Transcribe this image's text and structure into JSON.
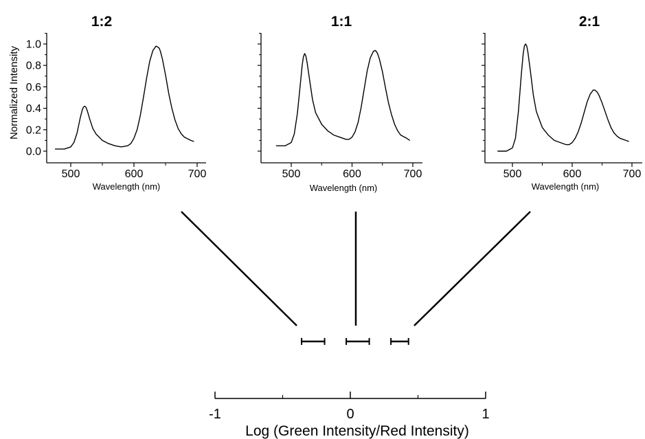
{
  "chart_data": [
    {
      "type": "line",
      "title": "1:2",
      "xlabel": "Wavelength (nm)",
      "ylabel": "Normalized Intensity",
      "xlim": [
        460,
        710
      ],
      "ylim": [
        -0.08,
        1.1
      ],
      "xticks": [
        500,
        600,
        700
      ],
      "yticks": [
        0.0,
        0.2,
        0.4,
        0.6,
        0.8,
        1.0
      ],
      "ytick_labels": [
        "0.0",
        "0.2",
        "0.4",
        "0.6",
        "0.8",
        "1.0"
      ],
      "series": [
        {
          "x": [
            475,
            490,
            500,
            505,
            510,
            515,
            518,
            520,
            522,
            524,
            526,
            530,
            535,
            540,
            550,
            560,
            570,
            580,
            590,
            595,
            600,
            605,
            610,
            615,
            620,
            625,
            630,
            635,
            638,
            640,
            642,
            645,
            650,
            655,
            660,
            665,
            670,
            675,
            680,
            690,
            695
          ],
          "y": [
            0.02,
            0.02,
            0.04,
            0.08,
            0.17,
            0.31,
            0.38,
            0.41,
            0.42,
            0.41,
            0.38,
            0.3,
            0.21,
            0.16,
            0.1,
            0.07,
            0.05,
            0.04,
            0.05,
            0.07,
            0.12,
            0.2,
            0.33,
            0.5,
            0.68,
            0.84,
            0.94,
            0.98,
            0.97,
            0.96,
            0.93,
            0.86,
            0.71,
            0.54,
            0.4,
            0.29,
            0.21,
            0.16,
            0.13,
            0.1,
            0.09
          ]
        }
      ]
    },
    {
      "type": "line",
      "title": "1:1",
      "xlabel": "Wavelength (nm)",
      "ylabel": "",
      "xlim": [
        460,
        710
      ],
      "ylim": [
        -0.08,
        1.1
      ],
      "xticks": [
        500,
        600,
        700
      ],
      "yticks": [
        0.0,
        0.2,
        0.4,
        0.6,
        0.8,
        1.0
      ],
      "ytick_labels": [],
      "series": [
        {
          "x": [
            475,
            490,
            500,
            505,
            510,
            515,
            518,
            520,
            522,
            524,
            526,
            530,
            535,
            540,
            550,
            560,
            570,
            580,
            590,
            595,
            600,
            605,
            610,
            615,
            620,
            625,
            630,
            635,
            638,
            640,
            642,
            645,
            650,
            655,
            660,
            665,
            670,
            675,
            680,
            690,
            695
          ],
          "y": [
            0.05,
            0.05,
            0.08,
            0.16,
            0.35,
            0.63,
            0.8,
            0.88,
            0.91,
            0.89,
            0.83,
            0.67,
            0.48,
            0.36,
            0.25,
            0.19,
            0.15,
            0.13,
            0.11,
            0.11,
            0.13,
            0.18,
            0.27,
            0.41,
            0.58,
            0.75,
            0.87,
            0.93,
            0.94,
            0.93,
            0.91,
            0.86,
            0.74,
            0.59,
            0.45,
            0.34,
            0.25,
            0.19,
            0.15,
            0.12,
            0.1
          ]
        }
      ]
    },
    {
      "type": "line",
      "title": "2:1",
      "xlabel": "Wavelength (nm)",
      "ylabel": "",
      "xlim": [
        460,
        710
      ],
      "ylim": [
        -0.08,
        1.1
      ],
      "xticks": [
        500,
        600,
        700
      ],
      "yticks": [
        0.0,
        0.2,
        0.4,
        0.6,
        0.8,
        1.0
      ],
      "ytick_labels": [],
      "series": [
        {
          "x": [
            475,
            490,
            500,
            505,
            510,
            515,
            518,
            520,
            522,
            524,
            526,
            530,
            535,
            540,
            550,
            560,
            570,
            580,
            590,
            595,
            600,
            605,
            610,
            615,
            620,
            625,
            630,
            635,
            638,
            640,
            642,
            645,
            650,
            655,
            660,
            665,
            670,
            675,
            680,
            690,
            695
          ],
          "y": [
            0.0,
            0.0,
            0.03,
            0.12,
            0.37,
            0.72,
            0.91,
            0.98,
            1.0,
            0.98,
            0.92,
            0.75,
            0.52,
            0.37,
            0.22,
            0.15,
            0.1,
            0.08,
            0.06,
            0.06,
            0.08,
            0.12,
            0.18,
            0.26,
            0.36,
            0.46,
            0.53,
            0.57,
            0.57,
            0.56,
            0.55,
            0.52,
            0.45,
            0.37,
            0.29,
            0.22,
            0.17,
            0.14,
            0.12,
            0.1,
            0.09
          ]
        }
      ]
    },
    {
      "type": "scatter",
      "title": "",
      "xlabel": "Log (Green Intensity/Red Intensity)",
      "xlim": [
        -1,
        1
      ],
      "xticks": [
        -1,
        0,
        1
      ],
      "xtick_labels": [
        "-1",
        "0",
        "1"
      ],
      "minor_xticks": [
        -0.5,
        0.5
      ],
      "range_bars": [
        {
          "name": "1:2",
          "low": -0.36,
          "high": -0.19,
          "center": -0.28
        },
        {
          "name": "1:1",
          "low": -0.03,
          "high": 0.14,
          "center": 0.04
        },
        {
          "name": "2:1",
          "low": 0.3,
          "high": 0.43,
          "center": 0.37
        }
      ]
    }
  ]
}
